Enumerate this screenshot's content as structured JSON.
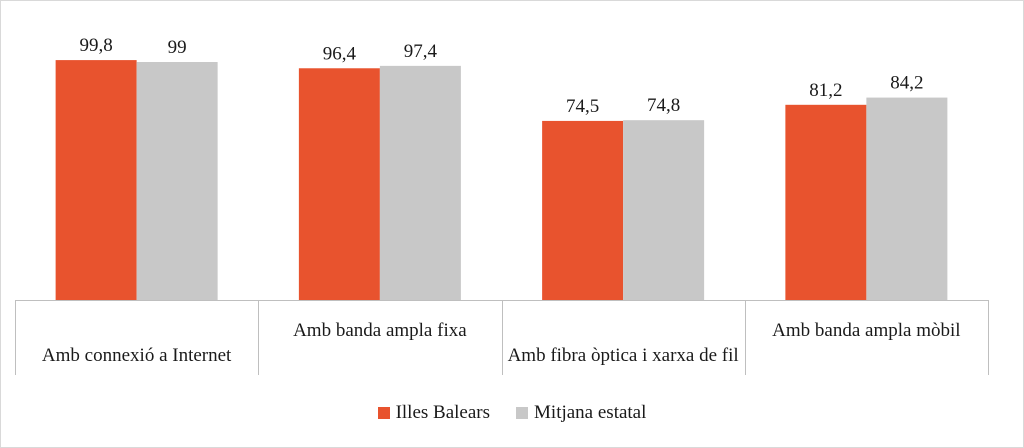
{
  "chart_data": {
    "type": "bar",
    "categories": [
      "Amb connexió a Internet",
      "Amb banda ampla fixa",
      "Amb fibra òptica i xarxa de fil",
      "Amb banda ampla mòbil"
    ],
    "series": [
      {
        "name": "Illes Balears",
        "values": [
          99.8,
          96.4,
          74.5,
          81.2
        ],
        "labels": [
          "99,8",
          "96,4",
          "74,5",
          "81,2"
        ],
        "color": "#e8532e"
      },
      {
        "name": "Mitjana estatal",
        "values": [
          99,
          97.4,
          74.8,
          84.2
        ],
        "labels": [
          "99",
          "97,4",
          "74,8",
          "84,2"
        ],
        "color": "#c8c8c8"
      }
    ],
    "ylim": [
      0,
      104
    ],
    "grid": false,
    "legend_position": "bottom"
  }
}
